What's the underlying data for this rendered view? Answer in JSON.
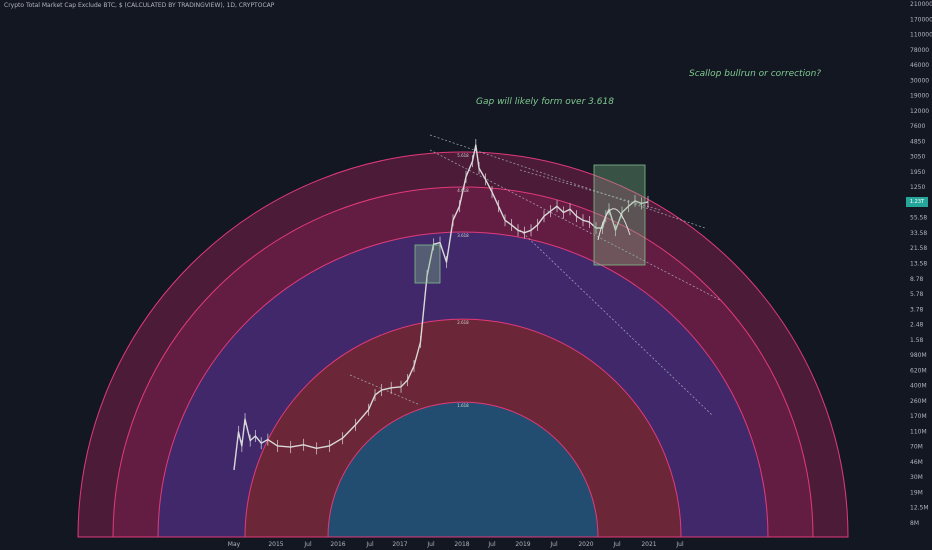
{
  "title": "Crypto Total Market Cap Exclude BTC, $ (CALCULATED BY TRADINGVIEW), 1D, CRYPTOCAP",
  "price_badge": "1.23T",
  "colors": {
    "background": "#131722",
    "outer_band": "#7a1f4a",
    "purple_band": "#3a2a72",
    "red_band": "#7a2626",
    "inner_dome": "#1f4f73",
    "arc_line": "#e23a78",
    "candle": "#d9d9d9",
    "trend": "#b0b8c8",
    "box": "#7fbf8a",
    "annotation": "#7fc98f"
  },
  "chart_data": {
    "type": "line",
    "title": "Crypto Total Market Cap Exclude BTC, $ (CALCULATED BY TRADINGVIEW), 1D, CRYPTOCAP",
    "y_scale": "log",
    "y_ticks": [
      "210000",
      "170000",
      "110000",
      "78000",
      "46000",
      "30000",
      "19000",
      "12000",
      "7600",
      "4850",
      "3050",
      "1950",
      "1250",
      "85.58",
      "55.58",
      "33.58",
      "21.58",
      "13.58",
      "8.78",
      "5.78",
      "3.78",
      "2.48",
      "1.58",
      "980M",
      "620M",
      "400M",
      "260M",
      "170M",
      "110M",
      "70M",
      "46M",
      "30M",
      "19M",
      "12.5M",
      "8M"
    ],
    "x_ticks": [
      "May",
      "2015",
      "Jul",
      "2016",
      "Jul",
      "2017",
      "Jul",
      "2018",
      "Jul",
      "2019",
      "Jul",
      "2020",
      "Jul",
      "2021",
      "Jul"
    ],
    "fib_labels": [
      "5.618",
      "4.618",
      "3.618",
      "2.618",
      "1.618"
    ],
    "series": [
      {
        "values": [
          [
            2014.33,
            30
          ],
          [
            2014.4,
            90
          ],
          [
            2014.45,
            60
          ],
          [
            2014.5,
            130
          ],
          [
            2014.58,
            70
          ],
          [
            2014.66,
            80
          ],
          [
            2014.75,
            65
          ],
          [
            2014.85,
            72
          ],
          [
            2015.0,
            60
          ],
          [
            2015.2,
            58
          ],
          [
            2015.4,
            62
          ],
          [
            2015.6,
            56
          ],
          [
            2015.8,
            60
          ],
          [
            2016.0,
            75
          ],
          [
            2016.2,
            110
          ],
          [
            2016.4,
            170
          ],
          [
            2016.5,
            260
          ],
          [
            2016.6,
            300
          ],
          [
            2016.75,
            320
          ],
          [
            2016.9,
            330
          ],
          [
            2017.0,
            400
          ],
          [
            2017.1,
            600
          ],
          [
            2017.2,
            1200
          ],
          [
            2017.3,
            8000
          ],
          [
            2017.4,
            20000
          ],
          [
            2017.5,
            21000
          ],
          [
            2017.6,
            12000
          ],
          [
            2017.7,
            40000
          ],
          [
            2017.8,
            60000
          ],
          [
            2017.9,
            140000
          ],
          [
            2018.0,
            220000
          ],
          [
            2018.05,
            350000
          ],
          [
            2018.1,
            180000
          ],
          [
            2018.2,
            130000
          ],
          [
            2018.3,
            90000
          ],
          [
            2018.4,
            60000
          ],
          [
            2018.5,
            40000
          ],
          [
            2018.6,
            35000
          ],
          [
            2018.7,
            30000
          ],
          [
            2018.8,
            28000
          ],
          [
            2018.9,
            30000
          ],
          [
            2019.0,
            35000
          ],
          [
            2019.1,
            45000
          ],
          [
            2019.2,
            52000
          ],
          [
            2019.3,
            60000
          ],
          [
            2019.4,
            50000
          ],
          [
            2019.5,
            55000
          ],
          [
            2019.6,
            45000
          ],
          [
            2019.7,
            40000
          ],
          [
            2019.8,
            38000
          ],
          [
            2019.9,
            32000
          ],
          [
            2020.0,
            32000
          ],
          [
            2020.05,
            45000
          ],
          [
            2020.1,
            55000
          ],
          [
            2020.2,
            30000
          ],
          [
            2020.3,
            50000
          ],
          [
            2020.4,
            60000
          ],
          [
            2020.5,
            70000
          ],
          [
            2020.6,
            65000
          ],
          [
            2020.7,
            68000
          ]
        ]
      }
    ],
    "annotations": [
      {
        "text": "Gap will likely form over 3.618"
      },
      {
        "text": "Scallop bullrun or correction?"
      }
    ]
  }
}
